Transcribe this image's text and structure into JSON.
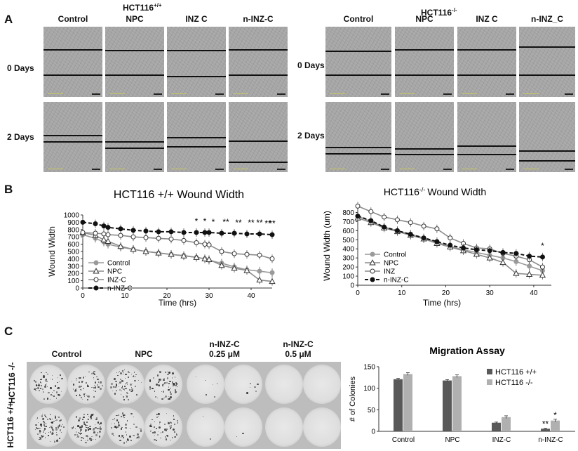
{
  "panel_labels": {
    "a": "A",
    "b": "B",
    "c": "C"
  },
  "panel_a": {
    "left": {
      "cell_line": "HCT116",
      "cell_sup": "+/+",
      "columns": [
        "Control",
        "NPC",
        "INZ C",
        "n-INZ-C"
      ],
      "rows": [
        "0 Days",
        "2 Days"
      ]
    },
    "right": {
      "cell_line": "HCT116",
      "cell_sup": "-/-",
      "columns": [
        "Control",
        "NPC",
        "INZ C",
        "n-INZ_C"
      ],
      "rows": [
        "0 Days",
        "2 Days"
      ]
    }
  },
  "panel_c": {
    "columns": [
      "Control",
      "NPC",
      "n-INZ-C",
      "n-INZ-C"
    ],
    "col_sub": [
      "",
      "",
      "0.25 μM",
      "0.5 μM"
    ],
    "rows": [
      "HCT116 -/-",
      "HCT116 +/+"
    ]
  },
  "chart_data": [
    {
      "type": "line",
      "title": "HCT116 +/+ Wound Width",
      "xlabel": "Time (hrs)",
      "ylabel": "Wound Width",
      "xlim": [
        0,
        45
      ],
      "ylim": [
        0,
        1000
      ],
      "xticks": [
        0,
        10,
        20,
        30,
        40
      ],
      "yticks": [
        0,
        100,
        200,
        300,
        400,
        500,
        600,
        700,
        800,
        900,
        1000
      ],
      "x": [
        0,
        3,
        5,
        6,
        9,
        12,
        15,
        18,
        21,
        24,
        27,
        29,
        30,
        33,
        36,
        39,
        42,
        45
      ],
      "series": [
        {
          "name": "Control",
          "style": "grey-filled",
          "values": [
            730,
            680,
            630,
            600,
            560,
            530,
            500,
            480,
            460,
            445,
            420,
            400,
            380,
            340,
            290,
            250,
            230,
            210
          ]
        },
        {
          "name": "NPC",
          "style": "triangle-open",
          "values": [
            760,
            720,
            660,
            640,
            570,
            530,
            500,
            480,
            460,
            440,
            420,
            400,
            390,
            310,
            270,
            240,
            110,
            90
          ]
        },
        {
          "name": "INZ-C",
          "style": "circle-open",
          "values": [
            760,
            750,
            740,
            730,
            720,
            700,
            690,
            680,
            670,
            650,
            620,
            600,
            590,
            500,
            470,
            460,
            450,
            400
          ]
        },
        {
          "name": "n-INZ-C",
          "style": "dashed-black",
          "values": [
            900,
            880,
            850,
            830,
            810,
            790,
            780,
            770,
            770,
            760,
            760,
            760,
            760,
            750,
            750,
            740,
            740,
            730
          ]
        }
      ],
      "annotations": [
        "*",
        "*",
        "*",
        "**",
        "**",
        "**",
        "**",
        "**",
        "**"
      ],
      "annotation_x": [
        27,
        29,
        31,
        34,
        37,
        40,
        42,
        44,
        45
      ]
    },
    {
      "type": "line",
      "title": "HCT116",
      "title_sup": "-/-",
      "title_rest": "Wound Width",
      "xlabel": "Time (hrs)",
      "ylabel": "Wound Width (um)",
      "xlim": [
        0,
        44
      ],
      "ylim": [
        0,
        850
      ],
      "xticks": [
        0,
        10,
        20,
        30,
        40
      ],
      "yticks": [
        0,
        100,
        200,
        300,
        400,
        500,
        600,
        700,
        800
      ],
      "x": [
        0,
        3,
        6,
        9,
        12,
        15,
        18,
        21,
        24,
        27,
        30,
        33,
        36,
        39,
        42
      ],
      "series": [
        {
          "name": "Control",
          "style": "grey-filled",
          "values": [
            760,
            700,
            640,
            600,
            560,
            520,
            470,
            430,
            390,
            360,
            330,
            300,
            260,
            210,
            160
          ]
        },
        {
          "name": "NPC",
          "style": "triangle-open",
          "values": [
            740,
            690,
            630,
            590,
            550,
            510,
            460,
            420,
            380,
            340,
            300,
            250,
            130,
            120,
            110
          ]
        },
        {
          "name": "INZ",
          "style": "circle-open",
          "values": [
            870,
            810,
            750,
            720,
            690,
            650,
            620,
            520,
            460,
            410,
            400,
            350,
            320,
            280,
            200
          ]
        },
        {
          "name": "n-INZ-C",
          "style": "dashed-black",
          "values": [
            760,
            710,
            640,
            600,
            560,
            520,
            480,
            440,
            410,
            390,
            380,
            360,
            350,
            320,
            310
          ]
        }
      ],
      "annotations": [
        "*"
      ],
      "annotation_x": [
        42
      ]
    },
    {
      "type": "bar",
      "title": "Migration Assay",
      "xlabel": "",
      "ylabel": "# of Colonies",
      "categories": [
        "Control",
        "NPC",
        "INZ-C",
        "n-INZ-C"
      ],
      "ylim": [
        0,
        150
      ],
      "yticks": [
        0,
        50,
        100,
        150
      ],
      "series": [
        {
          "name": "HCT116 +/+",
          "color": "#595959",
          "values": [
            121,
            118,
            20,
            6
          ],
          "err": [
            2,
            2,
            1.5,
            1
          ]
        },
        {
          "name": "HCT116 -/-",
          "color": "#b0b0b0",
          "values": [
            133,
            128,
            33,
            25
          ],
          "err": [
            3,
            3,
            3,
            3
          ]
        }
      ],
      "annotations": [
        {
          "category": "n-INZ-C",
          "series": "HCT116 +/+",
          "text": "**"
        },
        {
          "category": "n-INZ-C",
          "series": "HCT116 -/-",
          "text": "*"
        }
      ]
    }
  ]
}
